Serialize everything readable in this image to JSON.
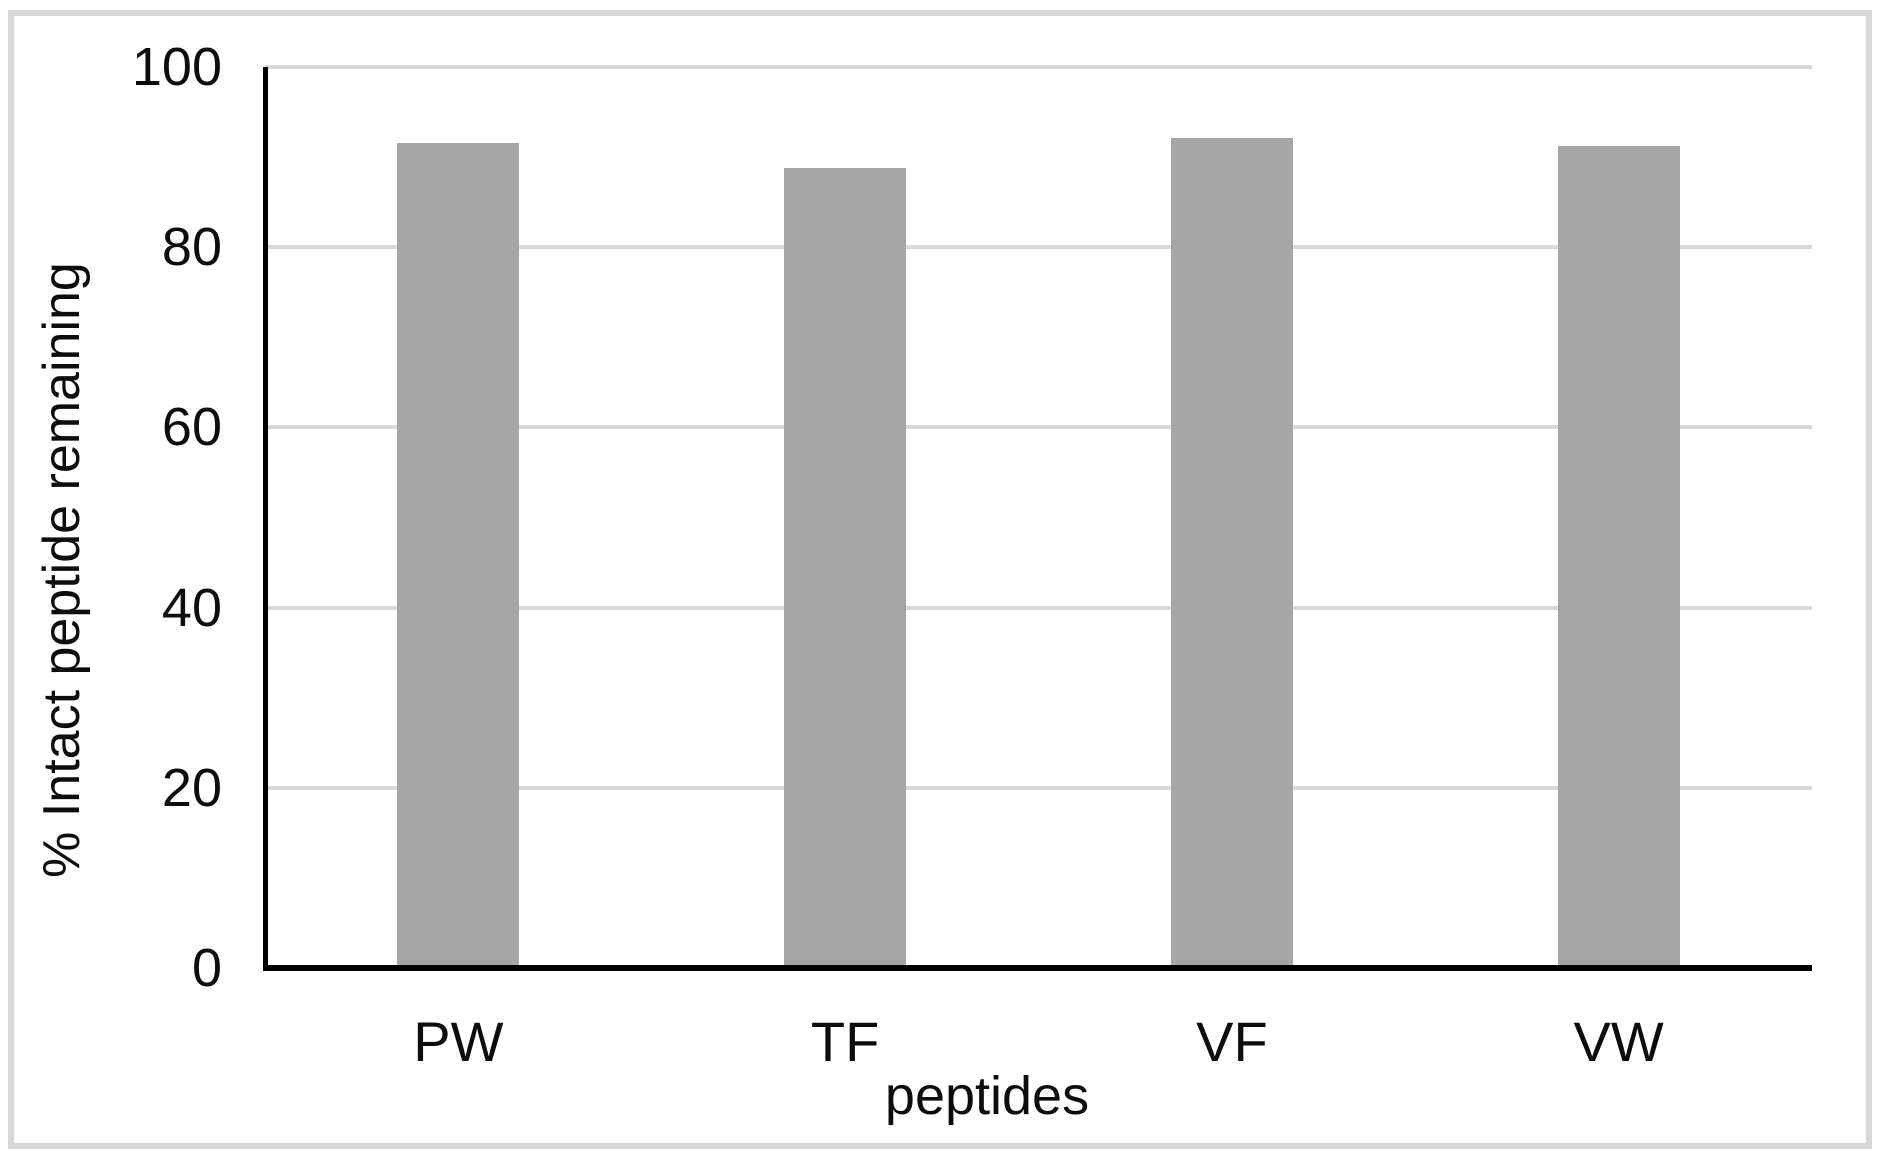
{
  "chart_data": {
    "type": "bar",
    "title": "",
    "categories": [
      "PW",
      "TF",
      "VF",
      "VW"
    ],
    "values": [
      91.6,
      88.8,
      92.1,
      91.2
    ],
    "xlabel": "peptides",
    "ylabel": "% Intact peptide remaining",
    "ylim": [
      0,
      100
    ],
    "yticks": [
      0,
      20,
      40,
      60,
      80,
      100
    ],
    "grid": "horizontal",
    "legend": "none",
    "bar_color": "#a6a6a6",
    "gridline_color": "#d9d9d9",
    "axis_color": "#000000",
    "frame_color": "#d7d7d7",
    "background": "#ffffff"
  }
}
